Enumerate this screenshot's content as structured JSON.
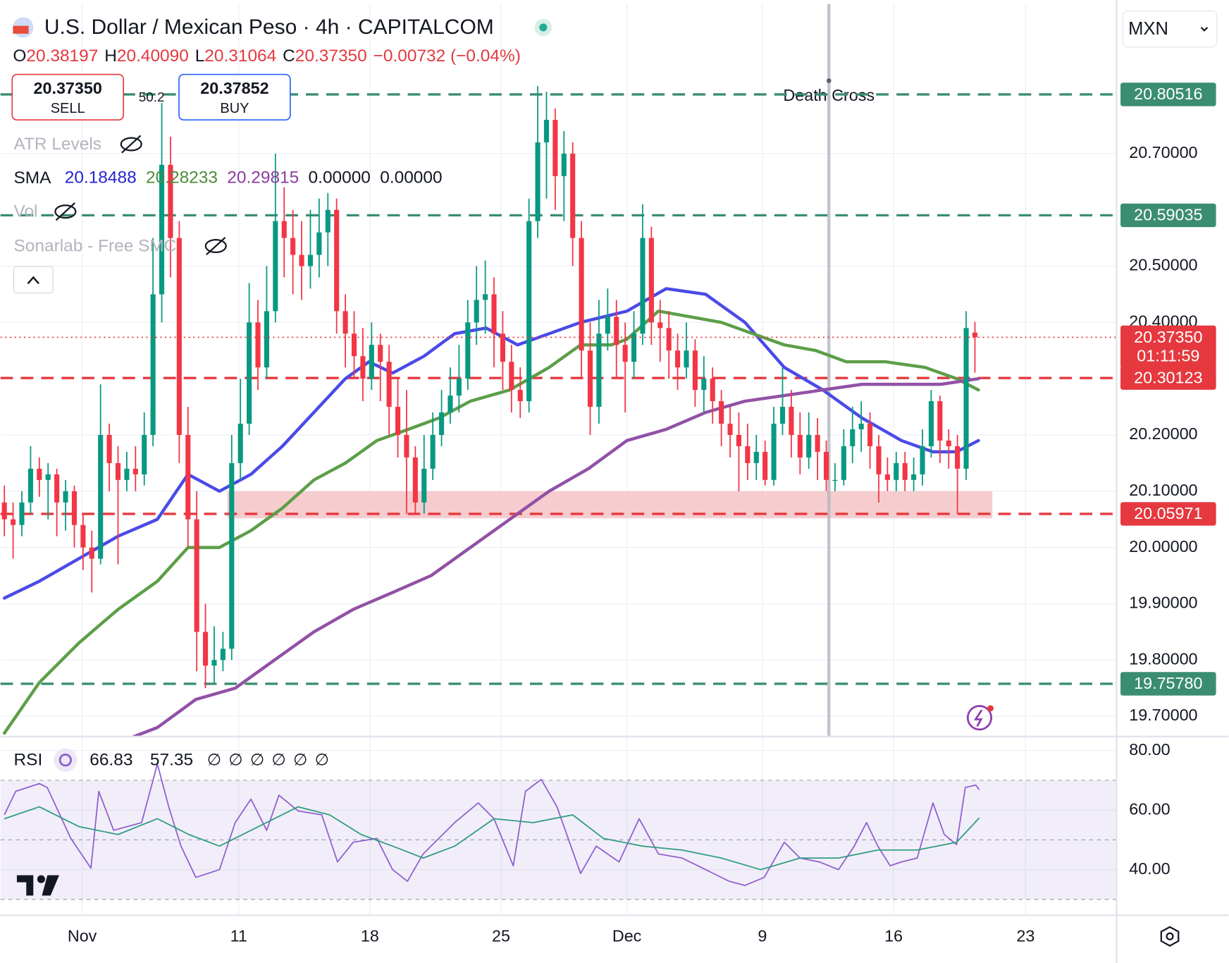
{
  "header": {
    "title": "U.S. Dollar / Mexican Peso · 4h · CAPITALCOM",
    "ohlc": [
      {
        "label": "O",
        "value": "20.38197"
      },
      {
        "label": "H",
        "value": "20.40090"
      },
      {
        "label": "L",
        "value": "20.31064"
      },
      {
        "label": "C",
        "value": "20.37350"
      }
    ],
    "change": "−0.00732 (−0.04%)"
  },
  "trade": {
    "sell_price": "20.37350",
    "sell": "SELL",
    "spread": "50.2",
    "buy_price": "20.37852",
    "buy": "BUY"
  },
  "indicators": {
    "atr": "ATR Levels",
    "sma": "SMA",
    "sma_values": [
      "20.18488",
      "20.28233",
      "20.29815",
      "0.00000",
      "0.00000"
    ],
    "vol": "Vol",
    "smc": "Sonarlab - Free SMC"
  },
  "currency": "MXN",
  "chart_data": [
    {
      "type": "candlestick",
      "xlim": [
        -0.45,
        127.2
      ],
      "ylim": [
        19.664,
        20.966
      ],
      "xticks": [
        {
          "value": 8.9,
          "label": "Nov"
        },
        {
          "value": 26.8,
          "label": "11"
        },
        {
          "value": 41.8,
          "label": "18"
        },
        {
          "value": 56.8,
          "label": "25"
        },
        {
          "value": 71.2,
          "label": "Dec"
        },
        {
          "value": 86.7,
          "label": "9"
        },
        {
          "value": 101.7,
          "label": "16"
        },
        {
          "value": 116.8,
          "label": "23"
        }
      ],
      "yticks": [
        {
          "value": 19.7,
          "label": "19.70000"
        },
        {
          "value": 19.8,
          "label": "19.80000"
        },
        {
          "value": 19.9,
          "label": "19.90000"
        },
        {
          "value": 20.0,
          "label": "20.00000"
        },
        {
          "value": 20.1,
          "label": "20.10000"
        },
        {
          "value": 20.2,
          "label": "20.20000"
        },
        {
          "value": 20.4,
          "label": "20.40000"
        },
        {
          "value": 20.5,
          "label": "20.50000"
        },
        {
          "value": 20.7,
          "label": "20.70000"
        }
      ],
      "up_color": "#089981",
      "down_color": "#f23645",
      "x": [
        0,
        1,
        2,
        3,
        4,
        5,
        6,
        7,
        8,
        9,
        10,
        11,
        12,
        13,
        14,
        15,
        16,
        17,
        18,
        19,
        20,
        21,
        22,
        23,
        24,
        25,
        26,
        27,
        28,
        29,
        30,
        31,
        32,
        33,
        34,
        35,
        36,
        37,
        38,
        39,
        40,
        41,
        42,
        43,
        44,
        45,
        46,
        47,
        48,
        49,
        50,
        51,
        52,
        53,
        54,
        55,
        56,
        57,
        58,
        59,
        60,
        61,
        62,
        63,
        64,
        65,
        66,
        67,
        68,
        69,
        70,
        71,
        72,
        73,
        74,
        75,
        76,
        77,
        78,
        79,
        80,
        81,
        82,
        83,
        84,
        85,
        86,
        87,
        88,
        89,
        90,
        91,
        92,
        93,
        94,
        95,
        96,
        97,
        98,
        99,
        100,
        101,
        102,
        103,
        104,
        105,
        106,
        107,
        108,
        109,
        110,
        111
      ],
      "open": [
        20.08,
        20.05,
        20.04,
        20.08,
        20.14,
        20.12,
        20.13,
        20.08,
        20.1,
        20.04,
        20.0,
        19.98,
        20.2,
        20.15,
        20.12,
        20.14,
        20.13,
        20.2,
        20.45,
        20.68,
        20.55,
        20.2,
        20.05,
        19.85,
        19.79,
        19.8,
        19.82,
        20.15,
        20.22,
        20.4,
        20.32,
        20.42,
        20.58,
        20.55,
        20.52,
        20.5,
        20.52,
        20.56,
        20.6,
        20.42,
        20.38,
        20.34,
        20.3,
        20.36,
        20.33,
        20.25,
        20.2,
        20.16,
        20.08,
        20.14,
        20.2,
        20.24,
        20.27,
        20.3,
        20.4,
        20.44,
        20.45,
        20.38,
        20.33,
        20.28,
        20.26,
        20.58,
        20.72,
        20.76,
        20.66,
        20.7,
        20.55,
        20.35,
        20.25,
        20.38,
        20.41,
        20.36,
        20.33,
        20.38,
        20.55,
        20.4,
        20.39,
        20.35,
        20.32,
        20.35,
        20.28,
        20.3,
        20.26,
        20.22,
        20.2,
        20.18,
        20.15,
        20.17,
        20.12,
        20.22,
        20.25,
        20.2,
        20.16,
        20.2,
        20.17,
        20.12,
        20.12,
        20.18,
        20.21,
        20.22,
        20.18,
        20.13,
        20.12,
        20.15,
        20.12,
        20.13,
        20.18,
        20.26,
        20.19,
        20.18,
        20.14,
        20.38197
      ],
      "high": [
        20.11,
        20.08,
        20.1,
        20.18,
        20.16,
        20.15,
        20.14,
        20.12,
        20.11,
        20.06,
        20.03,
        20.29,
        20.22,
        20.18,
        20.17,
        20.18,
        20.24,
        20.55,
        20.79,
        20.73,
        20.58,
        20.25,
        20.1,
        19.9,
        19.86,
        19.85,
        20.2,
        20.3,
        20.47,
        20.44,
        20.5,
        20.7,
        20.64,
        20.6,
        20.58,
        20.6,
        20.62,
        20.63,
        20.62,
        20.45,
        20.42,
        20.39,
        20.4,
        20.38,
        20.36,
        20.3,
        20.28,
        20.18,
        20.2,
        20.24,
        20.28,
        20.32,
        20.36,
        20.44,
        20.5,
        20.51,
        20.48,
        20.42,
        20.36,
        20.32,
        20.62,
        20.82,
        20.81,
        20.78,
        20.74,
        20.72,
        20.58,
        20.4,
        20.44,
        20.46,
        20.44,
        20.4,
        20.42,
        20.61,
        20.57,
        20.44,
        20.42,
        20.38,
        20.4,
        20.37,
        20.34,
        20.32,
        20.28,
        20.25,
        20.24,
        20.22,
        20.2,
        20.19,
        20.25,
        20.32,
        20.28,
        20.24,
        20.24,
        20.23,
        20.19,
        20.15,
        20.21,
        20.25,
        20.26,
        20.24,
        20.2,
        20.16,
        20.17,
        20.17,
        20.16,
        20.21,
        20.28,
        20.27,
        20.21,
        20.2,
        20.42,
        20.4009
      ],
      "low": [
        20.02,
        19.98,
        20.02,
        20.06,
        20.09,
        20.05,
        20.02,
        20.03,
        20.0,
        19.96,
        19.92,
        19.97,
        20.1,
        19.97,
        20.1,
        20.1,
        20.11,
        20.18,
        20.4,
        20.48,
        20.15,
        20.0,
        19.78,
        19.75,
        19.76,
        19.78,
        19.8,
        20.12,
        20.2,
        20.28,
        20.3,
        20.4,
        20.48,
        20.45,
        20.44,
        20.46,
        20.48,
        20.5,
        20.38,
        20.32,
        20.3,
        20.26,
        20.28,
        20.26,
        20.2,
        20.16,
        20.06,
        20.06,
        20.06,
        20.12,
        20.18,
        20.22,
        20.24,
        20.28,
        20.36,
        20.38,
        20.32,
        20.28,
        20.24,
        20.23,
        20.24,
        20.55,
        20.62,
        20.6,
        20.58,
        20.5,
        20.3,
        20.2,
        20.22,
        20.35,
        20.3,
        20.24,
        20.3,
        20.36,
        20.36,
        20.33,
        20.3,
        20.28,
        20.3,
        20.25,
        20.24,
        20.22,
        20.18,
        20.16,
        20.1,
        20.12,
        20.12,
        20.11,
        20.11,
        20.2,
        20.16,
        20.13,
        20.14,
        20.12,
        20.1,
        20.1,
        20.11,
        20.15,
        20.17,
        20.14,
        20.08,
        20.1,
        20.1,
        20.1,
        20.1,
        20.11,
        20.16,
        20.15,
        20.14,
        20.06,
        20.12,
        20.31064
      ],
      "close": [
        20.05,
        20.04,
        20.08,
        20.14,
        20.12,
        20.13,
        20.08,
        20.1,
        20.04,
        20.0,
        19.98,
        20.2,
        20.15,
        20.12,
        20.14,
        20.13,
        20.2,
        20.45,
        20.68,
        20.55,
        20.2,
        20.05,
        19.85,
        19.79,
        19.8,
        19.82,
        20.15,
        20.22,
        20.4,
        20.32,
        20.42,
        20.58,
        20.55,
        20.52,
        20.5,
        20.52,
        20.56,
        20.6,
        20.42,
        20.38,
        20.34,
        20.3,
        20.36,
        20.33,
        20.25,
        20.2,
        20.16,
        20.08,
        20.14,
        20.2,
        20.24,
        20.27,
        20.3,
        20.4,
        20.44,
        20.45,
        20.38,
        20.33,
        20.28,
        20.26,
        20.58,
        20.72,
        20.76,
        20.66,
        20.7,
        20.55,
        20.35,
        20.25,
        20.38,
        20.41,
        20.36,
        20.33,
        20.38,
        20.55,
        20.4,
        20.39,
        20.35,
        20.32,
        20.35,
        20.28,
        20.3,
        20.26,
        20.22,
        20.2,
        20.18,
        20.15,
        20.17,
        20.12,
        20.22,
        20.25,
        20.2,
        20.16,
        20.2,
        20.17,
        20.12,
        20.12,
        20.18,
        20.21,
        20.22,
        20.18,
        20.13,
        20.12,
        20.15,
        20.12,
        20.13,
        20.18,
        20.26,
        20.19,
        20.18,
        20.14,
        20.39,
        20.3735
      ],
      "series": [
        {
          "color": "#4a4ae8",
          "x": [
            0,
            4,
            8.5,
            13,
            17.5,
            21,
            24.6,
            28.2,
            31.8,
            35.4,
            39,
            41.7,
            44.4,
            48,
            51.5,
            55.1,
            58.7,
            62.3,
            65.9,
            71.2,
            75.7,
            80.2,
            84.7,
            89.2,
            93.6,
            98.1,
            102.6,
            106.2,
            108.9,
            111.4
          ],
          "values": [
            19.91,
            19.94,
            19.98,
            20.02,
            20.05,
            20.13,
            20.1,
            20.13,
            20.18,
            20.24,
            20.3,
            20.33,
            20.31,
            20.34,
            20.38,
            20.39,
            20.36,
            20.38,
            20.4,
            20.42,
            20.46,
            20.45,
            20.4,
            20.32,
            20.28,
            20.23,
            20.19,
            20.17,
            20.17,
            20.19
          ]
        },
        {
          "color": "#5c9e48",
          "x": [
            0,
            4,
            8.5,
            13,
            17.5,
            21,
            24.6,
            28.2,
            31.8,
            35.4,
            39,
            42.6,
            46.2,
            49.7,
            53.3,
            57.8,
            62.3,
            65.9,
            69.4,
            71.2,
            74.8,
            78.4,
            82,
            85.6,
            89.2,
            92.8,
            96.3,
            100.8,
            105.3,
            108.9,
            111.4
          ],
          "values": [
            19.67,
            19.76,
            19.83,
            19.89,
            19.94,
            20.0,
            20.0,
            20.03,
            20.07,
            20.12,
            20.15,
            20.19,
            20.21,
            20.23,
            20.26,
            20.28,
            20.32,
            20.36,
            20.36,
            20.37,
            20.42,
            20.41,
            20.4,
            20.38,
            20.36,
            20.35,
            20.33,
            20.33,
            20.32,
            20.3,
            20.28
          ]
        },
        {
          "color": "#9151a6",
          "x": [
            14.8,
            17.5,
            21.9,
            26.4,
            30.9,
            35.4,
            39.9,
            44.4,
            48.8,
            53.3,
            57.8,
            62.3,
            66.8,
            71.2,
            75.7,
            80.2,
            84.7,
            89.2,
            93.6,
            98.1,
            102.6,
            107.1,
            111.4
          ],
          "values": [
            19.664,
            19.68,
            19.73,
            19.75,
            19.8,
            19.85,
            19.89,
            19.92,
            19.95,
            20.0,
            20.05,
            20.1,
            20.14,
            20.19,
            20.21,
            20.24,
            20.26,
            20.27,
            20.28,
            20.29,
            20.29,
            20.29,
            20.3
          ]
        }
      ],
      "levels": [
        {
          "value": 20.80516,
          "color": "#3b8d72"
        },
        {
          "value": 20.59035,
          "color": "#3b8d72"
        },
        {
          "value": 20.30123,
          "color": "#e5393f"
        },
        {
          "value": 20.05971,
          "color": "#e5393f"
        },
        {
          "value": 19.7578,
          "label": "19.75780",
          "color": "#3b8d72"
        }
      ],
      "zone": {
        "x": [
          25.5,
          113
        ],
        "y": [
          20.052,
          20.1
        ],
        "color": "#f4c3c6"
      },
      "current": {
        "value": 20.3735,
        "label": "20.37350",
        "countdown": "01:11:59",
        "color": "#e5393f"
      },
      "event": {
        "x": 94.3,
        "label": "Death Cross"
      }
    },
    {
      "type": "line",
      "title": "RSI",
      "xlim": [
        -0.45,
        127.2
      ],
      "ylim": [
        24.7,
        84.7
      ],
      "yticks": [
        {
          "value": 40,
          "label": "40.00"
        },
        {
          "value": 60,
          "label": "60.00"
        },
        {
          "value": 80,
          "label": "80.00"
        }
      ],
      "band": [
        30,
        70
      ],
      "midline": 50,
      "legend_values": [
        "66.83",
        "57.35"
      ],
      "hidden_values": [
        "∅",
        "∅",
        "∅",
        "∅",
        "∅",
        "∅"
      ],
      "series": [
        {
          "color": "#8f5fd0",
          "x": [
            0,
            1.3,
            4.0,
            4.9,
            7.6,
            9.9,
            10.8,
            12.5,
            15.7,
            17.5,
            18.8,
            20.2,
            21.9,
            24.6,
            26.4,
            28.2,
            30.0,
            31.4,
            33.6,
            36.3,
            38.1,
            39.9,
            42.6,
            44.4,
            46.1,
            47.9,
            51.5,
            54.2,
            56.0,
            58.2,
            59.6,
            61.4,
            63.2,
            65.9,
            67.7,
            70.3,
            72.6,
            74.8,
            77.5,
            80.2,
            82.9,
            84.7,
            86.9,
            89.2,
            91.0,
            93.2,
            95.4,
            97.2,
            98.6,
            99.9,
            101.3,
            102.6,
            104.4,
            106.2,
            107.5,
            108.9,
            109.9,
            111.1,
            111.5
          ],
          "values": [
            58.4,
            66.3,
            68.9,
            67.6,
            50.5,
            40.5,
            66.3,
            53.2,
            55.8,
            75.5,
            61.1,
            47.9,
            37.4,
            40.0,
            55.8,
            63.7,
            53.2,
            65.0,
            59.7,
            58.4,
            42.6,
            49.2,
            50.5,
            40.0,
            36.1,
            45.3,
            55.8,
            62.4,
            57.1,
            41.3,
            66.3,
            70.3,
            61.1,
            38.7,
            47.9,
            42.6,
            57.1,
            45.3,
            43.9,
            40.0,
            36.1,
            34.7,
            37.4,
            49.2,
            43.9,
            42.6,
            40.0,
            47.9,
            55.8,
            47.9,
            41.3,
            42.6,
            43.9,
            62.4,
            51.8,
            48.4,
            67.6,
            68.4,
            66.8
          ]
        },
        {
          "color": "#2f9d7f",
          "x": [
            0,
            4.0,
            8.5,
            13,
            17.5,
            21.1,
            24.6,
            28.2,
            33.6,
            37.2,
            40.8,
            44.4,
            47.9,
            51.5,
            56.0,
            60.5,
            65.0,
            68.5,
            73.0,
            77.5,
            82.0,
            86.5,
            91.0,
            95.4,
            99.9,
            104.4,
            108.9,
            111.5
          ],
          "values": [
            57.1,
            61.1,
            54.5,
            51.8,
            57.1,
            51.8,
            47.9,
            53.2,
            61.1,
            58.4,
            51.8,
            47.9,
            43.9,
            47.9,
            57.1,
            55.8,
            58.4,
            50.5,
            47.9,
            46.6,
            43.9,
            40.0,
            43.9,
            43.9,
            46.6,
            46.6,
            49.2,
            57.4
          ]
        }
      ]
    }
  ]
}
